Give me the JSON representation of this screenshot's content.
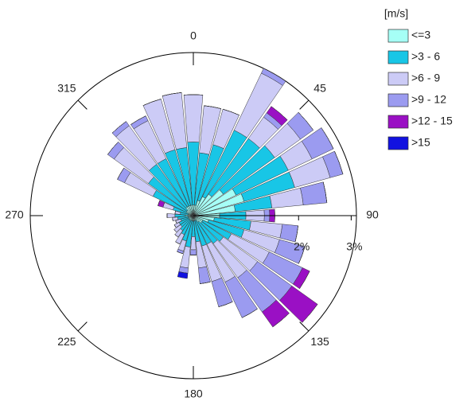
{
  "chart_data": {
    "type": "windrose",
    "legend_title": "[m/s]",
    "x": [
      0,
      10,
      20,
      30,
      40,
      50,
      60,
      70,
      80,
      90,
      100,
      110,
      120,
      130,
      140,
      150,
      160,
      170,
      180,
      190,
      200,
      210,
      220,
      230,
      240,
      250,
      260,
      270,
      280,
      290,
      300,
      310,
      320,
      330,
      340,
      350
    ],
    "xticks": [
      0,
      45,
      90,
      135,
      180,
      225,
      270,
      315
    ],
    "ylim": [
      0,
      3.1
    ],
    "yticks": [
      {
        "value": 2,
        "label": "2%"
      },
      {
        "value": 3,
        "label": "3%"
      }
    ],
    "series": [
      {
        "name": "<=3",
        "color": "#a6fff6",
        "values": [
          0.2,
          0.2,
          0.3,
          0.4,
          0.5,
          0.7,
          0.9,
          1.0,
          0.8,
          0.5,
          0.4,
          0.3,
          0.2,
          0.2,
          0.15,
          0.1,
          0.1,
          0.1,
          0.1,
          0.1,
          0.1,
          0.1,
          0.1,
          0.1,
          0.1,
          0.1,
          0.1,
          0.15,
          0.1,
          0.1,
          0.15,
          0.15,
          0.2,
          0.2,
          0.2,
          0.2
        ]
      },
      {
        "name": ">3 - 6",
        "color": "#18c6e6",
        "values": [
          1.2,
          1.0,
          1.1,
          1.4,
          1.3,
          1.2,
          1.1,
          1.0,
          0.7,
          0.5,
          0.7,
          0.7,
          0.6,
          0.5,
          0.5,
          0.5,
          0.5,
          0.4,
          0.3,
          0.5,
          0.4,
          0.3,
          0.25,
          0.2,
          0.2,
          0.15,
          0.2,
          0.2,
          0.15,
          0.3,
          0.7,
          0.9,
          1.0,
          1.0,
          1.1,
          1.1
        ]
      },
      {
        "name": ">6 - 9",
        "color": "#cccbf6",
        "values": [
          0.9,
          0.9,
          0.7,
          1.2,
          0.5,
          0.6,
          0.5,
          0.7,
          0.6,
          0.35,
          0.6,
          0.7,
          0.8,
          0.8,
          0.8,
          0.8,
          0.7,
          0.5,
          0.25,
          0.4,
          0.2,
          0.2,
          0.15,
          0.15,
          0.1,
          0.1,
          0.1,
          0.15,
          0.1,
          0.2,
          0.6,
          0.8,
          0.9,
          0.8,
          1.0,
          1.05
        ]
      },
      {
        "name": ">9 - 12",
        "color": "#9b9bf0",
        "values": [
          0,
          0,
          0,
          0.1,
          0.1,
          0.3,
          0.45,
          0.25,
          0.45,
          0.1,
          0.3,
          0.5,
          0.7,
          0.8,
          0.8,
          0.75,
          0.5,
          0.3,
          0.1,
          0.1,
          0.05,
          0,
          0,
          0,
          0,
          0,
          0,
          0,
          0,
          0,
          0.15,
          0.15,
          0.1,
          0.1,
          0,
          0
        ]
      },
      {
        "name": ">12 - 15",
        "color": "#9a10c4",
        "values": [
          0,
          0,
          0,
          0,
          0.15,
          0,
          0,
          0,
          0,
          0.1,
          0,
          0,
          0.15,
          0.6,
          0.35,
          0,
          0,
          0,
          0,
          0,
          0,
          0,
          0,
          0,
          0,
          0,
          0,
          0,
          0,
          0.1,
          0,
          0,
          0,
          0,
          0,
          0
        ]
      },
      {
        "name": ">15",
        "color": "#1212e0",
        "values": [
          0,
          0,
          0,
          0,
          0,
          0,
          0,
          0,
          0,
          0,
          0,
          0,
          0,
          0,
          0,
          0,
          0,
          0,
          0,
          0.1,
          0,
          0,
          0,
          0,
          0,
          0,
          0,
          0,
          0,
          0,
          0,
          0,
          0,
          0,
          0,
          0
        ]
      }
    ]
  }
}
